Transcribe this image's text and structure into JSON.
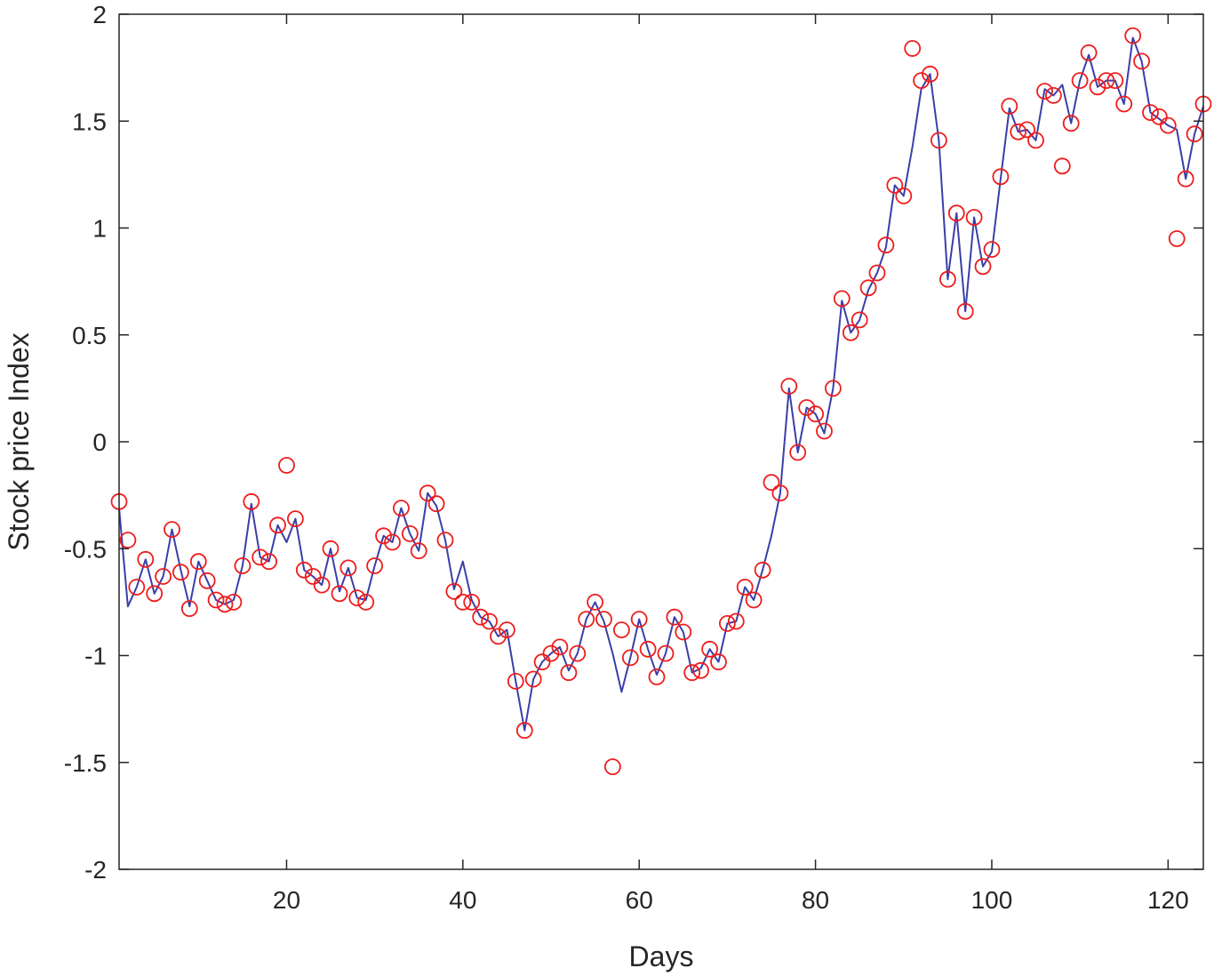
{
  "chart_data": {
    "type": "line",
    "title": "",
    "xlabel": "Days",
    "ylabel": "Stock price Index",
    "xlim": [
      1,
      124
    ],
    "ylim": [
      -2,
      2
    ],
    "xticks": [
      20,
      40,
      60,
      80,
      100,
      120
    ],
    "yticks": [
      -2,
      -1.5,
      -1,
      -0.5,
      0,
      0.5,
      1,
      1.5,
      2
    ],
    "grid": false,
    "legend": "none",
    "colors": {
      "line": "#3a3fa8",
      "marker": "#ee1c1c",
      "axis": "#262626"
    },
    "series": [
      {
        "style": "line",
        "x": [
          1,
          2,
          3,
          4,
          5,
          6,
          7,
          8,
          9,
          10,
          11,
          12,
          13,
          14,
          15,
          16,
          17,
          18,
          19,
          20,
          21,
          22,
          23,
          24,
          25,
          26,
          27,
          28,
          29,
          30,
          31,
          32,
          33,
          34,
          35,
          36,
          37,
          38,
          39,
          40,
          41,
          42,
          43,
          44,
          45,
          46,
          47,
          48,
          49,
          50,
          51,
          52,
          53,
          54,
          55,
          56,
          57,
          58,
          59,
          60,
          61,
          62,
          63,
          64,
          65,
          66,
          67,
          68,
          69,
          70,
          71,
          72,
          73,
          74,
          75,
          76,
          77,
          78,
          79,
          80,
          81,
          82,
          83,
          84,
          85,
          86,
          87,
          88,
          89,
          90,
          91,
          92,
          93,
          94,
          95,
          96,
          97,
          98,
          99,
          100,
          101,
          102,
          103,
          104,
          105,
          106,
          107,
          108,
          109,
          110,
          111,
          112,
          113,
          114,
          115,
          116,
          117,
          118,
          119,
          120,
          121,
          122,
          123,
          124
        ],
        "y": [
          -0.31,
          -0.77,
          -0.68,
          -0.55,
          -0.71,
          -0.63,
          -0.41,
          -0.6,
          -0.77,
          -0.56,
          -0.65,
          -0.74,
          -0.76,
          -0.74,
          -0.58,
          -0.29,
          -0.54,
          -0.56,
          -0.39,
          -0.47,
          -0.36,
          -0.6,
          -0.63,
          -0.67,
          -0.5,
          -0.7,
          -0.59,
          -0.73,
          -0.74,
          -0.58,
          -0.44,
          -0.47,
          -0.31,
          -0.43,
          -0.51,
          -0.24,
          -0.3,
          -0.46,
          -0.69,
          -0.56,
          -0.74,
          -0.82,
          -0.84,
          -0.91,
          -0.88,
          -1.12,
          -1.35,
          -1.11,
          -1.03,
          -0.99,
          -0.96,
          -1.07,
          -0.99,
          -0.83,
          -0.75,
          -0.84,
          -0.99,
          -1.17,
          -1.01,
          -0.83,
          -0.97,
          -1.09,
          -0.99,
          -0.82,
          -0.89,
          -1.08,
          -1.06,
          -0.97,
          -1.03,
          -0.85,
          -0.84,
          -0.68,
          -0.74,
          -0.6,
          -0.44,
          -0.24,
          0.25,
          -0.05,
          0.16,
          0.13,
          0.04,
          0.25,
          0.66,
          0.51,
          0.57,
          0.71,
          0.79,
          0.91,
          1.2,
          1.15,
          1.38,
          1.65,
          1.72,
          1.41,
          0.76,
          1.07,
          0.61,
          1.05,
          0.82,
          0.89,
          1.23,
          1.56,
          1.45,
          1.46,
          1.41,
          1.65,
          1.62,
          1.67,
          1.49,
          1.69,
          1.81,
          1.66,
          1.69,
          1.69,
          1.58,
          1.89,
          1.78,
          1.54,
          1.51,
          1.48,
          1.46,
          1.23,
          1.44,
          1.57
        ]
      },
      {
        "style": "markers",
        "x": [
          1,
          2,
          3,
          4,
          5,
          6,
          7,
          8,
          9,
          10,
          11,
          12,
          13,
          14,
          15,
          16,
          17,
          18,
          19,
          20,
          21,
          22,
          23,
          24,
          25,
          26,
          27,
          28,
          29,
          30,
          31,
          32,
          33,
          34,
          35,
          36,
          37,
          38,
          39,
          40,
          41,
          42,
          43,
          44,
          45,
          46,
          47,
          48,
          49,
          50,
          51,
          52,
          53,
          54,
          55,
          56,
          57,
          58,
          59,
          60,
          61,
          62,
          63,
          64,
          65,
          66,
          67,
          68,
          69,
          70,
          71,
          72,
          73,
          74,
          75,
          76,
          77,
          78,
          79,
          80,
          81,
          82,
          83,
          84,
          85,
          86,
          87,
          88,
          89,
          90,
          91,
          92,
          93,
          94,
          95,
          96,
          97,
          98,
          99,
          100,
          101,
          102,
          103,
          104,
          105,
          106,
          107,
          108,
          109,
          110,
          111,
          112,
          113,
          114,
          115,
          116,
          117,
          118,
          119,
          120,
          121,
          122,
          123,
          124
        ],
        "y": [
          -0.28,
          -0.46,
          -0.68,
          -0.55,
          -0.71,
          -0.63,
          -0.41,
          -0.61,
          -0.78,
          -0.56,
          -0.65,
          -0.74,
          -0.76,
          -0.75,
          -0.58,
          -0.28,
          -0.54,
          -0.56,
          -0.39,
          -0.11,
          -0.36,
          -0.6,
          -0.63,
          -0.67,
          -0.5,
          -0.71,
          -0.59,
          -0.73,
          -0.75,
          -0.58,
          -0.44,
          -0.47,
          -0.31,
          -0.43,
          -0.51,
          -0.24,
          -0.29,
          -0.46,
          -0.7,
          -0.75,
          -0.75,
          -0.82,
          -0.84,
          -0.91,
          -0.88,
          -1.12,
          -1.35,
          -1.11,
          -1.03,
          -0.99,
          -0.96,
          -1.08,
          -0.99,
          -0.83,
          -0.75,
          -0.83,
          -1.52,
          -0.88,
          -1.01,
          -0.83,
          -0.97,
          -1.1,
          -0.99,
          -0.82,
          -0.89,
          -1.08,
          -1.07,
          -0.97,
          -1.03,
          -0.85,
          -0.84,
          -0.68,
          -0.74,
          -0.6,
          -0.19,
          -0.24,
          0.26,
          -0.05,
          0.16,
          0.13,
          0.05,
          0.25,
          0.67,
          0.51,
          0.57,
          0.72,
          0.79,
          0.92,
          1.2,
          1.15,
          1.84,
          1.69,
          1.72,
          1.41,
          0.76,
          1.07,
          0.61,
          1.05,
          0.82,
          0.9,
          1.24,
          1.57,
          1.45,
          1.46,
          1.41,
          1.64,
          1.62,
          1.29,
          1.49,
          1.69,
          1.82,
          1.66,
          1.69,
          1.69,
          1.58,
          1.9,
          1.78,
          1.54,
          1.52,
          1.48,
          0.95,
          1.23,
          1.44,
          1.58
        ]
      }
    ]
  }
}
